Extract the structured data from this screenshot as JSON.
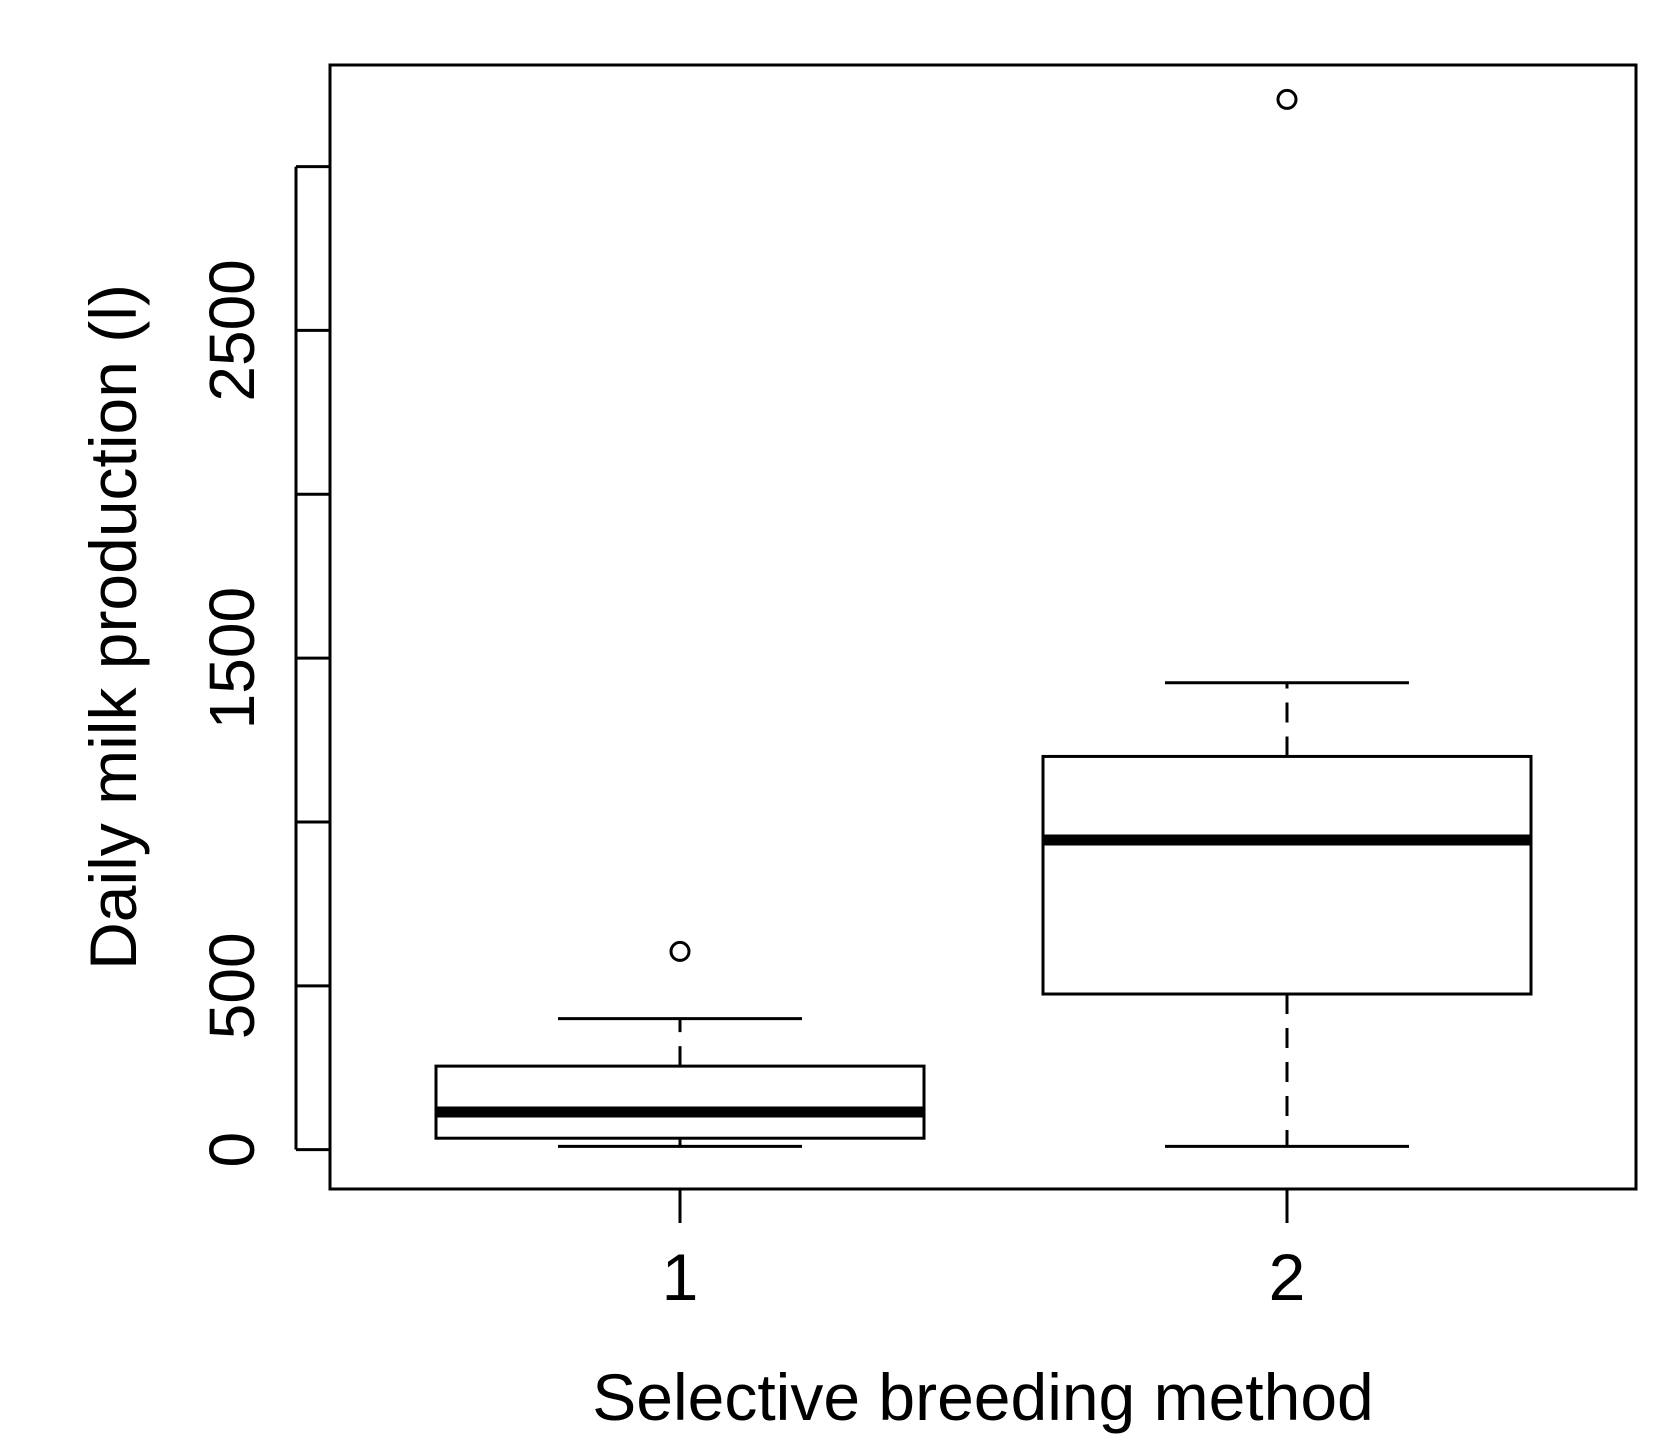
{
  "chart_data": {
    "type": "boxplot",
    "title": "",
    "xlabel": "Selective breeding method",
    "ylabel": "Daily milk production (l)",
    "ylim": [
      -120,
      3310
    ],
    "y_ticks": [
      0,
      500,
      1000,
      1500,
      2000,
      2500,
      3000
    ],
    "y_tick_labels": [
      "0",
      "500",
      "",
      "1500",
      "",
      "2500",
      ""
    ],
    "categories": [
      "1",
      "2"
    ],
    "boxes": [
      {
        "category": "1",
        "whisker_low": 10,
        "q1": 35,
        "median": 115,
        "q3": 255,
        "whisker_high": 400,
        "outliers": [
          605
        ]
      },
      {
        "category": "2",
        "whisker_low": 10,
        "q1": 475,
        "median": 945,
        "q3": 1200,
        "whisker_high": 1425,
        "outliers": [
          3205
        ]
      }
    ],
    "colors": {
      "stroke": "#000000",
      "background": "#ffffff"
    }
  }
}
